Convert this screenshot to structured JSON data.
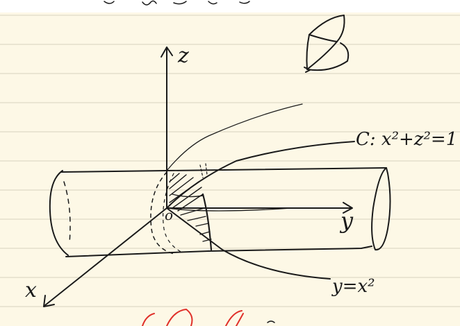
{
  "page": {
    "background": "#fdf8e6",
    "rule_color": "#d8d2bf",
    "top_band_color": "#ffffff",
    "ink_color": "#1a1a1a",
    "accent_ink_color": "#e0302a"
  },
  "diagram": {
    "axis_labels": {
      "z": "z",
      "y": "y",
      "x": "x",
      "origin": "o"
    },
    "curve_labels": {
      "cylinder": "C: x²+z²=1",
      "parabola": "y=x²"
    }
  }
}
